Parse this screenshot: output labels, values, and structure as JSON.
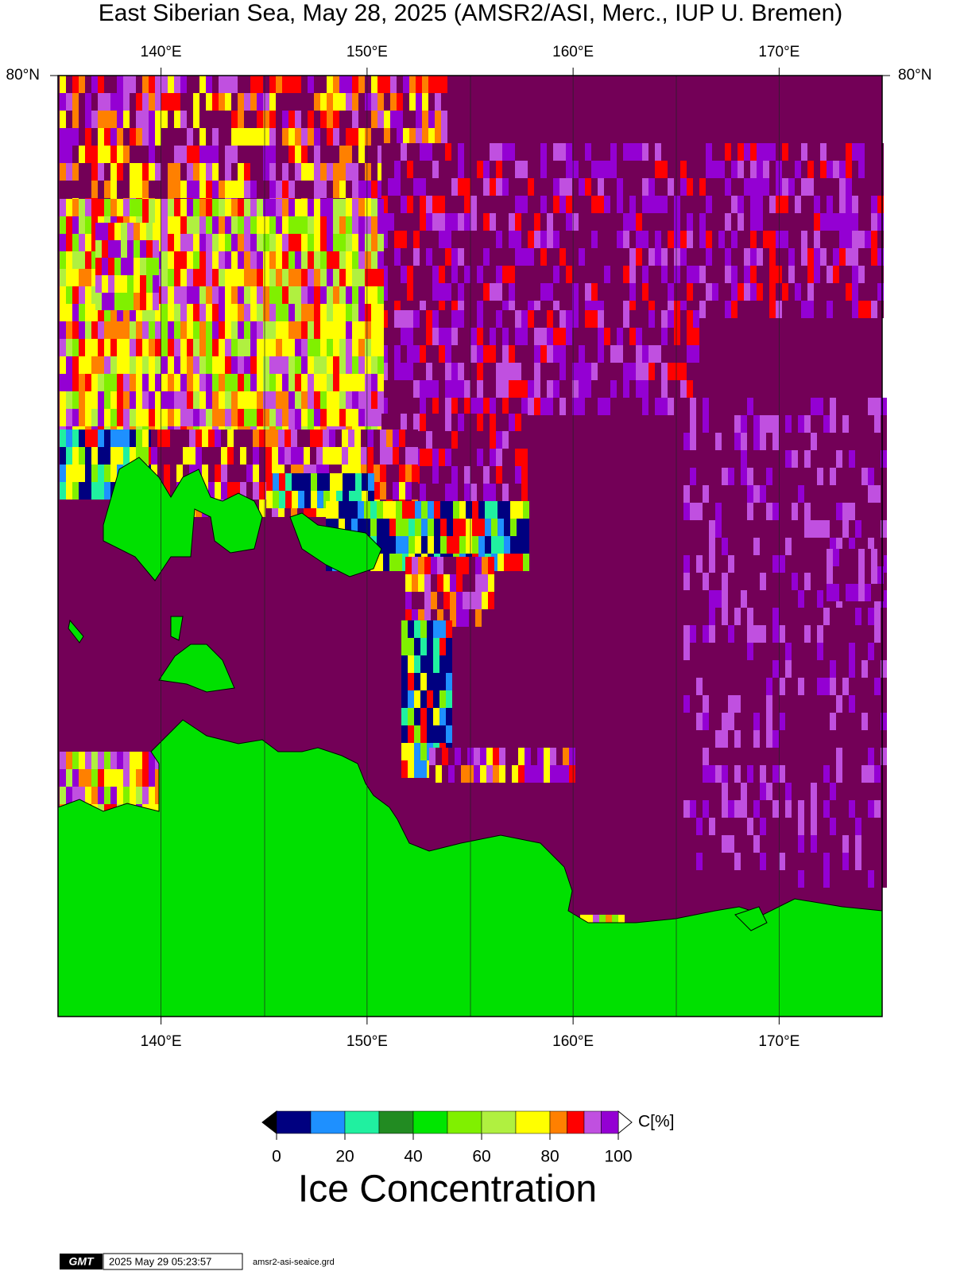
{
  "title": "East Siberian Sea, May 28, 2025 (AMSR2/ASI, Merc., IUP U. Bremen)",
  "map": {
    "lon_range": [
      135,
      175
    ],
    "lon_ticks": [
      {
        "value": 140,
        "label": "140°E"
      },
      {
        "value": 150,
        "label": "150°E"
      },
      {
        "value": 160,
        "label": "160°E"
      },
      {
        "value": 170,
        "label": "170°E"
      }
    ],
    "lat_label": "80°N"
  },
  "colorbar": {
    "unit_label": "C[%]",
    "title": "Ice Concentration",
    "range": [
      0,
      100
    ],
    "ticks": [
      0,
      20,
      40,
      60,
      80,
      100
    ],
    "bins": [
      0,
      10,
      20,
      30,
      40,
      50,
      60,
      70,
      80,
      85,
      90,
      95,
      100
    ],
    "colors": [
      "#000080",
      "#1e90ff",
      "#20f0a0",
      "#228b22",
      "#00e600",
      "#80f000",
      "#b0f040",
      "#ffff00",
      "#ff8000",
      "#ff0000",
      "#c050e0",
      "#9400d3"
    ]
  },
  "footer": {
    "logo": "GMT",
    "timestamp": "2025 May 29 05:23:57",
    "file": "amsr2-asi-seaice.grd"
  }
}
